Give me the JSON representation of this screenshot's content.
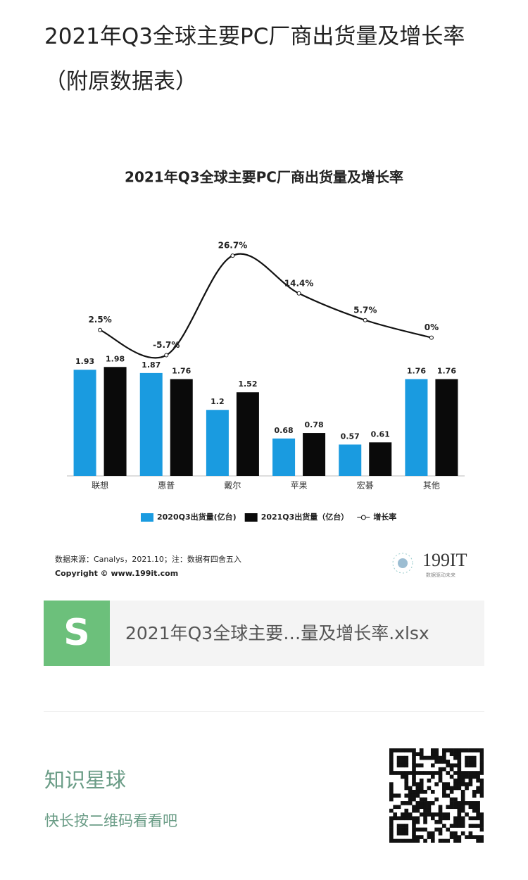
{
  "header": {
    "title": "2021年Q3全球主要PC厂商出货量及增长率（附原数据表）"
  },
  "chart_data": {
    "type": "bar",
    "title": "2021年Q3全球主要PC厂商出货量及增长率",
    "categories": [
      "联想",
      "惠普",
      "戴尔",
      "苹果",
      "宏碁",
      "其他"
    ],
    "series": [
      {
        "name": "2020Q3出货量(亿台)",
        "color": "#1a9be0",
        "values": [
          1.93,
          1.87,
          1.2,
          0.68,
          0.57,
          1.76
        ]
      },
      {
        "name": "2021Q3出货量（亿台）",
        "color": "#0a0a0a",
        "values": [
          1.98,
          1.76,
          1.52,
          0.78,
          0.61,
          1.76
        ]
      },
      {
        "name": "增长率",
        "color": "#111111",
        "type": "line",
        "axis": "y2",
        "values": [
          2.5,
          -5.7,
          26.7,
          14.4,
          5.7,
          0
        ],
        "value_labels": [
          "2.5%",
          "-5.7%",
          "26.7%",
          "14.4%",
          "5.7%",
          "0%"
        ]
      }
    ],
    "ylim": [
      0,
      4.3
    ],
    "y2lim": [
      -45,
      32
    ],
    "source": "数据来源：Canalys，2021.10；注：数据有四舍五入",
    "copyright": "Copyright © www.199it.com",
    "logo": "199IT",
    "logo_tagline": "数据驱动未来"
  },
  "file": {
    "name": "2021年Q3全球主要…量及增长率.xlsx",
    "icon": "S"
  },
  "footer": {
    "title": "知识星球",
    "hint": "快长按二维码看看吧"
  }
}
